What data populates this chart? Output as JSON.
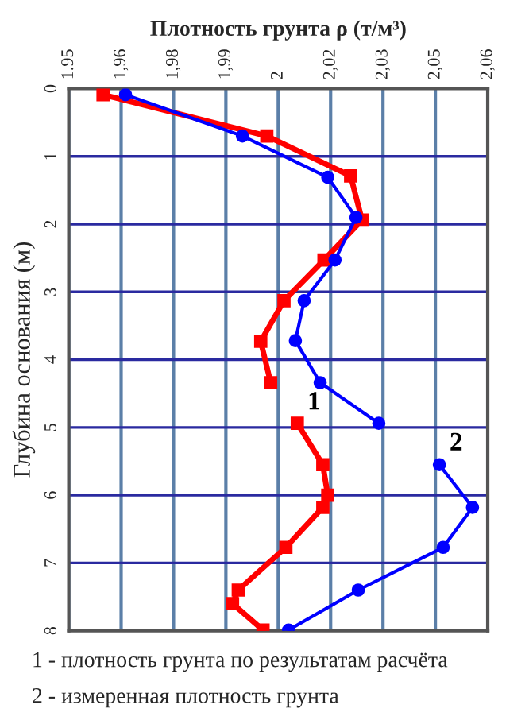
{
  "chart_data": {
    "type": "line",
    "xlabel": "Плотность грунта ρ (т/м³)",
    "ylabel": "Глубина основания (м)",
    "xlim": [
      1.95,
      2.06
    ],
    "ylim": [
      8,
      0
    ],
    "xticks": [
      1.95,
      {
        "value": 1.96375,
        "label": "1,96"
      },
      {
        "value": 1.9775,
        "label": "1,98"
      },
      {
        "value": 1.99125,
        "label": "1,99"
      },
      {
        "value": 2.005,
        "label": "2"
      },
      {
        "value": 2.01875,
        "label": "2,02"
      },
      {
        "value": 2.0325,
        "label": "2,03"
      },
      {
        "value": 2.04625,
        "label": "2,05"
      },
      {
        "value": 2.06,
        "label": "2,06"
      }
    ],
    "yticks": [
      0,
      1,
      2,
      3,
      4,
      5,
      6,
      7,
      8
    ],
    "grid": true,
    "series": [
      {
        "name": "1",
        "color": "#ff0000",
        "marker": "square",
        "x": [
          1.959,
          2.002,
          2.024,
          2.027,
          2.017,
          2.0065,
          2.0004,
          2.003,
          null,
          2.01,
          2.0167,
          2.018,
          2.0167,
          2.007,
          1.9945,
          1.993,
          2.001
        ],
        "values": [
          0.09,
          0.7,
          1.29,
          1.94,
          2.53,
          3.13,
          3.73,
          4.34,
          null,
          4.94,
          5.55,
          6.0,
          6.18,
          6.77,
          7.4,
          7.6,
          7.99
        ]
      },
      {
        "name": "2",
        "color": "#0000ff",
        "marker": "circle",
        "x": [
          1.9649,
          1.9956,
          2.018,
          2.0254,
          2.0199,
          2.0118,
          2.0095,
          2.016,
          2.0314,
          null,
          2.0473,
          2.056,
          2.0483,
          2.026,
          2.0077
        ],
        "values": [
          0.09,
          0.7,
          1.31,
          1.9,
          2.53,
          3.13,
          3.72,
          4.34,
          4.94,
          null,
          5.55,
          6.18,
          6.77,
          7.4,
          7.99
        ]
      }
    ],
    "annotations": [
      "1 - плотность грунта по результатам расчёта",
      "2 - измеренная плотность грунта"
    ]
  }
}
